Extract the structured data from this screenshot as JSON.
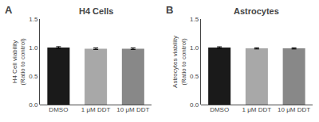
{
  "chart_data": [
    {
      "type": "bar",
      "title": "H4 Cells",
      "ylabel": "H4 Cell viability\n(Ratio to control)",
      "annotation": "A",
      "categories": [
        "DMSO",
        "1 μM DDT",
        "10 μM DDT"
      ],
      "values": [
        1.0,
        0.98,
        0.98
      ],
      "errors": [
        0.015,
        0.013,
        0.013
      ],
      "colors": [
        "#1a1a1a",
        "#a8a8a8",
        "#888888"
      ],
      "ylim": [
        0.0,
        1.5
      ],
      "yticks": [
        {
          "value": 0.0,
          "label": "0.0"
        },
        0.5,
        {
          "value": 1.0,
          "label": "1.0"
        },
        1.5
      ],
      "grid": false
    },
    {
      "type": "bar",
      "title": "Astrocytes",
      "ylabel": "Astrocytes viability\n(Ratio to control)",
      "annotation": "B",
      "categories": [
        "DMSO",
        "1 μM DDT",
        "10 μM DDT"
      ],
      "values": [
        1.0,
        0.985,
        0.985
      ],
      "errors": [
        0.013,
        0.01,
        0.01
      ],
      "colors": [
        "#1a1a1a",
        "#a8a8a8",
        "#888888"
      ],
      "ylim": [
        0.0,
        1.5
      ],
      "yticks": [
        {
          "value": 0.0,
          "label": "0.0"
        },
        0.5,
        {
          "value": 1.0,
          "label": "1.0"
        },
        1.5
      ],
      "grid": false
    }
  ]
}
